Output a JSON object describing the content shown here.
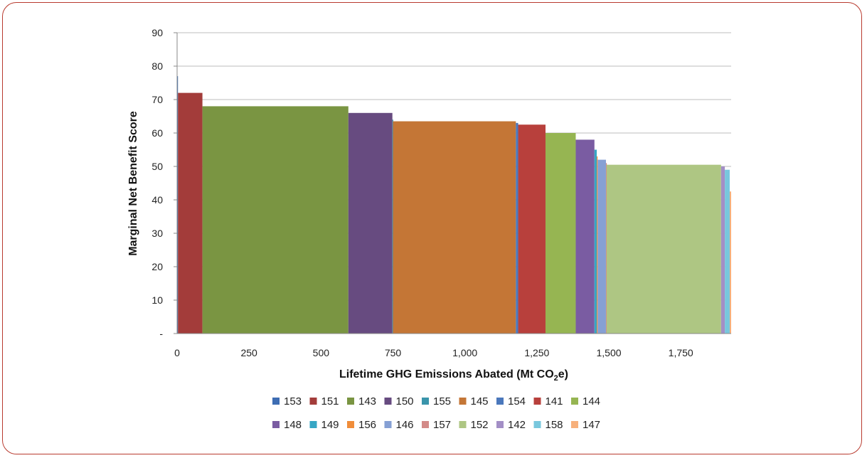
{
  "chart_data": {
    "type": "bar",
    "variant": "marginal-benefit-curve",
    "title": "",
    "xlabel": "Lifetime GHG Emissions Abated (Mt CO",
    "xlabel_sub": "2",
    "xlabel_tail": "e)",
    "ylabel": "Marginal Net Benefit Score",
    "xlim": [
      0,
      1925
    ],
    "ylim": [
      0,
      90
    ],
    "x_ticks": [
      {
        "value": 0,
        "label": "0"
      },
      {
        "value": 250,
        "label": "250"
      },
      {
        "value": 500,
        "label": "500"
      },
      {
        "value": 750,
        "label": "750"
      },
      {
        "value": 1000,
        "label": "1,000"
      },
      {
        "value": 1250,
        "label": "1,250"
      },
      {
        "value": 1500,
        "label": "1,500"
      },
      {
        "value": 1750,
        "label": "1,750"
      }
    ],
    "y_ticks": [
      {
        "value": 0,
        "label": "-"
      },
      {
        "value": 10,
        "label": "10"
      },
      {
        "value": 20,
        "label": "20"
      },
      {
        "value": 30,
        "label": "30"
      },
      {
        "value": 40,
        "label": "40"
      },
      {
        "value": 50,
        "label": "50"
      },
      {
        "value": 60,
        "label": "60"
      },
      {
        "value": 70,
        "label": "70"
      },
      {
        "value": 80,
        "label": "80"
      },
      {
        "value": 90,
        "label": "90"
      }
    ],
    "grid": true,
    "legend_position": "bottom",
    "series": [
      {
        "name": "153",
        "color": "#3e6db3",
        "x_start": 0,
        "x_end": 3,
        "value": 77
      },
      {
        "name": "151",
        "color": "#a33c3a",
        "x_start": 3,
        "x_end": 88,
        "value": 72
      },
      {
        "name": "143",
        "color": "#7a9542",
        "x_start": 88,
        "x_end": 595,
        "value": 68
      },
      {
        "name": "150",
        "color": "#674b80",
        "x_start": 595,
        "x_end": 748,
        "value": 66
      },
      {
        "name": "155",
        "color": "#3a95ab",
        "x_start": 748,
        "x_end": 750,
        "value": 64
      },
      {
        "name": "145",
        "color": "#c47636",
        "x_start": 750,
        "x_end": 1177,
        "value": 63.5
      },
      {
        "name": "154",
        "color": "#4b78bc",
        "x_start": 1177,
        "x_end": 1185,
        "value": 63
      },
      {
        "name": "141",
        "color": "#b8403c",
        "x_start": 1185,
        "x_end": 1280,
        "value": 62.5
      },
      {
        "name": "144",
        "color": "#96b552",
        "x_start": 1280,
        "x_end": 1385,
        "value": 60
      },
      {
        "name": "148",
        "color": "#7a5ca2",
        "x_start": 1385,
        "x_end": 1450,
        "value": 58
      },
      {
        "name": "149",
        "color": "#37a6c4",
        "x_start": 1450,
        "x_end": 1458,
        "value": 55
      },
      {
        "name": "156",
        "color": "#f08d3a",
        "x_start": 1458,
        "x_end": 1461,
        "value": 53
      },
      {
        "name": "146",
        "color": "#86a0d4",
        "x_start": 1461,
        "x_end": 1490,
        "value": 52
      },
      {
        "name": "157",
        "color": "#d38a88",
        "x_start": 1490,
        "x_end": 1492,
        "value": 51
      },
      {
        "name": "152",
        "color": "#aec683",
        "x_start": 1492,
        "x_end": 1890,
        "value": 50.5
      },
      {
        "name": "142",
        "color": "#a38fc6",
        "x_start": 1890,
        "x_end": 1903,
        "value": 50
      },
      {
        "name": "158",
        "color": "#78c7dd",
        "x_start": 1903,
        "x_end": 1920,
        "value": 49
      },
      {
        "name": "147",
        "color": "#f7b07b",
        "x_start": 1920,
        "x_end": 1925,
        "value": 42.5
      }
    ]
  }
}
